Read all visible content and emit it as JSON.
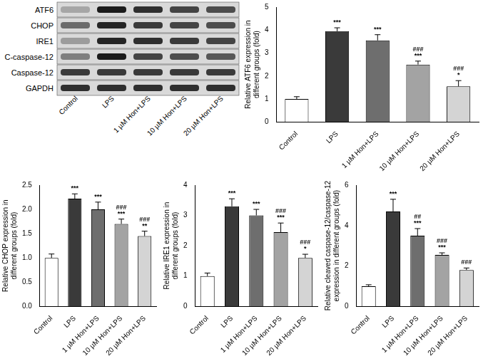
{
  "blot": {
    "rows": [
      "ATF6",
      "CHOP",
      "IRE1",
      "C-caspase-12",
      "Caspase-12",
      "GAPDH"
    ],
    "lanes": [
      "Control",
      "LPS",
      "1 µM Hon+LPS",
      "10 µM Hon+LPS",
      "20 µM Hon+LPS"
    ]
  },
  "chart_data": [
    {
      "type": "bar",
      "y_label": [
        "Relative ATF6 expression in",
        "different groups (fold)"
      ],
      "categories": [
        "Control",
        "LPS",
        "1 µM Hon+LPS",
        "10 µM Hon+LPS",
        "20 µM Hon+LPS"
      ],
      "values": [
        1.0,
        3.95,
        3.55,
        2.5,
        1.55
      ],
      "errors": [
        0.1,
        0.15,
        0.25,
        0.15,
        0.25
      ],
      "significance": [
        [],
        [
          "***"
        ],
        [
          "***"
        ],
        [
          "###",
          "***"
        ],
        [
          "###",
          "*"
        ]
      ],
      "colors": [
        "#ffffff",
        "#3a3a3a",
        "#6e6e6e",
        "#a3a3a3",
        "#d4d4d4"
      ],
      "ylim": [
        0,
        5
      ],
      "yticks": [
        0,
        1,
        2,
        3,
        4,
        5
      ],
      "grid": false
    },
    {
      "type": "bar",
      "y_label": [
        "Relative CHOP expression in",
        "different groups (fold)"
      ],
      "categories": [
        "Control",
        "LPS",
        "1 µM Hon+LPS",
        "10 µM Hon+LPS",
        "20 µM Hon+LPS"
      ],
      "values": [
        1.0,
        2.22,
        2.0,
        1.7,
        1.45
      ],
      "errors": [
        0.08,
        0.1,
        0.15,
        0.1,
        0.1
      ],
      "significance": [
        [],
        [
          "***"
        ],
        [
          "***"
        ],
        [
          "###",
          "***"
        ],
        [
          "###",
          "**"
        ]
      ],
      "colors": [
        "#ffffff",
        "#3a3a3a",
        "#6e6e6e",
        "#a3a3a3",
        "#d4d4d4"
      ],
      "ylim": [
        0,
        2.5
      ],
      "yticks": [
        {
          "value": 0,
          "label": "0.0"
        },
        0.5,
        {
          "value": 1,
          "label": "1.0"
        },
        1.5,
        {
          "value": 2,
          "label": "2.0"
        },
        2.5
      ],
      "grid": false
    },
    {
      "type": "bar",
      "y_label": [
        "Relative IRE1 expression in",
        "different groups (fold)"
      ],
      "categories": [
        "Control",
        "LPS",
        "1 µM Hon+LPS",
        "10 µM Hon+LPS",
        "20 µM Hon+LPS"
      ],
      "values": [
        1.0,
        3.3,
        3.0,
        2.45,
        1.6
      ],
      "errors": [
        0.1,
        0.25,
        0.2,
        0.3,
        0.12
      ],
      "significance": [
        [],
        [
          "***"
        ],
        [
          "***"
        ],
        [
          "###",
          "***"
        ],
        [
          "###",
          "*"
        ]
      ],
      "colors": [
        "#ffffff",
        "#3a3a3a",
        "#6e6e6e",
        "#a3a3a3",
        "#d4d4d4"
      ],
      "ylim": [
        0,
        4
      ],
      "yticks": [
        0,
        1,
        2,
        3,
        4
      ],
      "grid": false
    },
    {
      "type": "bar",
      "y_label": [
        "Relative cleaved caspase-12/caspase-12",
        "expression in different groups (fold)"
      ],
      "categories": [
        "Control",
        "LPS",
        "1 µM Hon+LPS",
        "10 µM Hon+LPS",
        "20 µM Hon+LPS"
      ],
      "values": [
        1.0,
        4.7,
        3.5,
        2.55,
        1.8
      ],
      "errors": [
        0.07,
        0.6,
        0.35,
        0.1,
        0.1
      ],
      "significance": [
        [],
        [
          "***"
        ],
        [
          "##",
          "***"
        ],
        [
          "###",
          "***"
        ],
        [
          "###"
        ]
      ],
      "colors": [
        "#ffffff",
        "#3a3a3a",
        "#6e6e6e",
        "#a3a3a3",
        "#d4d4d4"
      ],
      "ylim": [
        0,
        6
      ],
      "yticks": [
        0,
        2,
        4,
        6
      ],
      "grid": false
    }
  ]
}
